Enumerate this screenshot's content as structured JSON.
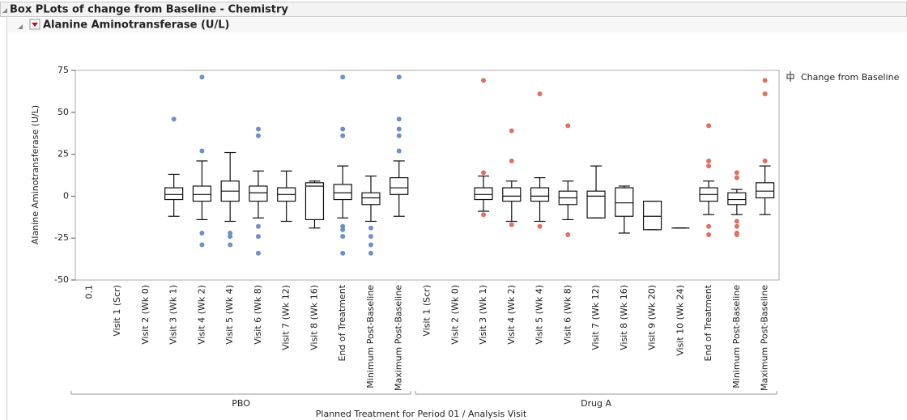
{
  "chart_data": {
    "type": "box",
    "title": "Box PLots of change from Baseline - Chemistry",
    "subtitle": "Alanine Aminotransferase (U/L)",
    "ylabel": "Alanine Aminotransferase (U/L)",
    "xlabel": "Planned Treatment for Period 01 / Analysis Visit",
    "legend": "Change from Baseline",
    "ylim": [
      -50,
      75
    ],
    "yticks": [
      -50,
      -25,
      0,
      25,
      50,
      75
    ],
    "groups": [
      {
        "name": "PBO",
        "color": "#6f8fcb",
        "categories": [
          "0.1",
          "Visit 1 (Scr)",
          "Visit 2 (Wk 0)",
          "Visit 3 (Wk 1)",
          "Visit 4 (Wk 2)",
          "Visit 5 (Wk 4)",
          "Visit 6 (Wk 8)",
          "Visit 7 (Wk 12)",
          "Visit 8 (Wk 16)",
          "End of Treatment",
          "Minimum Post-Baseline",
          "Maximum Post-Baseline"
        ],
        "boxes": [
          null,
          null,
          null,
          {
            "min": -12,
            "q1": -2,
            "median": 1,
            "q3": 5,
            "max": 13,
            "outliers": [
              46
            ]
          },
          {
            "min": -14,
            "q1": -3,
            "median": 1,
            "q3": 6,
            "max": 21,
            "outliers": [
              71,
              27,
              -22,
              -29
            ]
          },
          {
            "min": -15,
            "q1": -3,
            "median": 3,
            "q3": 9,
            "max": 26,
            "outliers": [
              -22,
              -24,
              -29
            ]
          },
          {
            "min": -13,
            "q1": -3,
            "median": 2,
            "q3": 6,
            "max": 15,
            "outliers": [
              40,
              36,
              -18,
              -24,
              -34
            ]
          },
          {
            "min": -15,
            "q1": -3,
            "median": 1,
            "q3": 5,
            "max": 15,
            "outliers": []
          },
          {
            "min": -19,
            "q1": -14,
            "median": 6,
            "q3": 8,
            "max": 9,
            "outliers": []
          },
          {
            "min": -13,
            "q1": -2,
            "median": 2,
            "q3": 7,
            "max": 18,
            "outliers": [
              71,
              40,
              36,
              -18,
              -20,
              -24,
              -34
            ]
          },
          {
            "min": -15,
            "q1": -5,
            "median": -1,
            "q3": 2,
            "max": 12,
            "outliers": [
              -19,
              -24,
              -29,
              -34
            ]
          },
          {
            "min": -12,
            "q1": 1,
            "median": 5,
            "q3": 11,
            "max": 21,
            "outliers": [
              71,
              46,
              40,
              36,
              27
            ]
          }
        ]
      },
      {
        "name": "Drug A",
        "color": "#e0705f",
        "categories": [
          "Visit 1 (Scr)",
          "Visit 2 (Wk 0)",
          "Visit 3 (Wk 1)",
          "Visit 4 (Wk 2)",
          "Visit 5 (Wk 4)",
          "Visit 6 (Wk 8)",
          "Visit 7 (Wk 12)",
          "Visit 8 (Wk 16)",
          "Visit 9 (Wk 20)",
          "Visit 10 (Wk 24)",
          "End of Treatment",
          "Minimum Post-Baseline",
          "Maximum Post-Baseline"
        ],
        "boxes": [
          null,
          null,
          {
            "min": -9,
            "q1": -2,
            "median": 1,
            "q3": 5,
            "max": 12,
            "outliers": [
              69,
              14,
              -11
            ]
          },
          {
            "min": -15,
            "q1": -3,
            "median": 0,
            "q3": 5,
            "max": 9,
            "outliers": [
              39,
              21,
              -17
            ]
          },
          {
            "min": -15,
            "q1": -3,
            "median": 0,
            "q3": 5,
            "max": 11,
            "outliers": [
              61,
              -18
            ]
          },
          {
            "min": -14,
            "q1": -5,
            "median": -1,
            "q3": 3,
            "max": 9,
            "outliers": [
              42,
              -23
            ]
          },
          {
            "min": -13,
            "q1": -13,
            "median": 0,
            "q3": 3,
            "max": 18,
            "outliers": []
          },
          {
            "min": -22,
            "q1": -12,
            "median": -4,
            "q3": 5,
            "max": 6,
            "outliers": []
          },
          {
            "min": -20,
            "q1": -20,
            "median": -12,
            "q3": -3,
            "max": -3,
            "outliers": []
          },
          {
            "min": -19,
            "q1": -19,
            "median": -19,
            "q3": -19,
            "max": -19,
            "outliers": []
          },
          {
            "min": -11,
            "q1": -3,
            "median": 1,
            "q3": 5,
            "max": 9,
            "outliers": [
              42,
              21,
              18,
              -18,
              -23
            ]
          },
          {
            "min": -11,
            "q1": -5,
            "median": -2,
            "q3": 2,
            "max": 4,
            "outliers": [
              14,
              11,
              -15,
              -18,
              -22,
              -23
            ]
          },
          {
            "min": -11,
            "q1": -1,
            "median": 3,
            "q3": 8,
            "max": 18,
            "outliers": [
              69,
              61,
              21
            ]
          }
        ]
      }
    ]
  }
}
